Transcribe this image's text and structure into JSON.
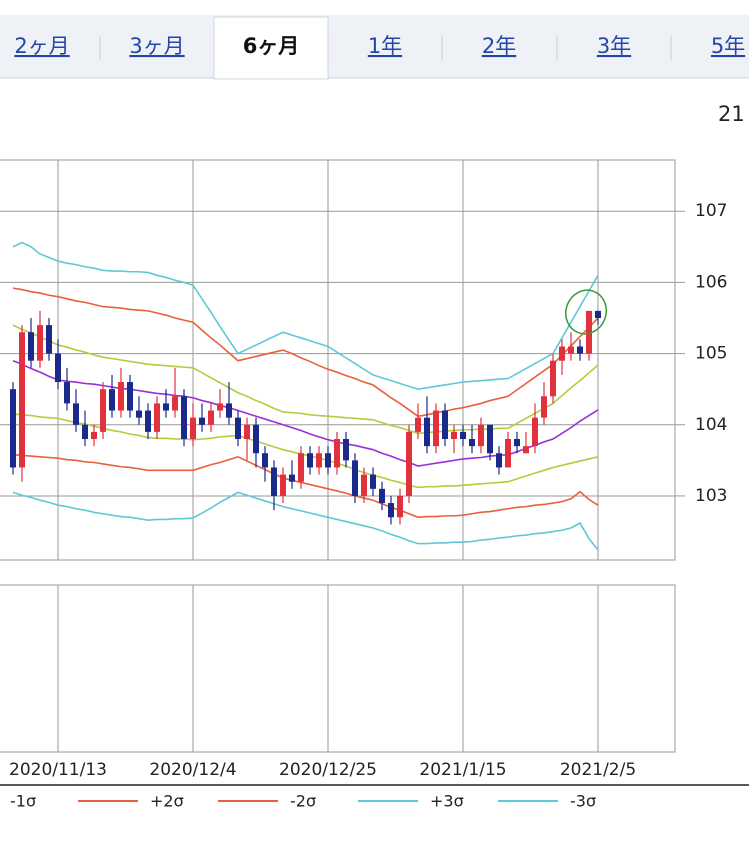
{
  "tabs": [
    "2ヶ月",
    "3ヶ月",
    "6ヶ月",
    "1年",
    "2年",
    "3年",
    "5年"
  ],
  "selected_tab": 2,
  "header_text": "21",
  "chart_data": {
    "type": "candlestick",
    "categories": [
      null,
      null,
      null,
      null,
      null,
      "2020/11/13",
      null,
      null,
      null,
      null,
      null,
      null,
      null,
      null,
      null,
      null,
      null,
      null,
      null,
      null,
      "2020/12/4",
      null,
      null,
      null,
      null,
      null,
      null,
      null,
      null,
      null,
      null,
      null,
      null,
      null,
      null,
      "2020/12/25",
      null,
      null,
      null,
      null,
      null,
      null,
      null,
      null,
      null,
      null,
      null,
      null,
      null,
      null,
      "2021/1/15",
      null,
      null,
      null,
      null,
      null,
      null,
      null,
      null,
      null,
      null,
      null,
      null,
      null,
      null,
      "2021/2/5"
    ],
    "open": [
      104.5,
      103.4,
      105.3,
      104.9,
      105.4,
      105.0,
      104.6,
      104.3,
      104.0,
      103.8,
      103.9,
      104.5,
      104.2,
      104.6,
      104.2,
      104.2,
      103.9,
      104.3,
      104.2,
      104.4,
      103.8,
      104.1,
      104.0,
      104.2,
      104.3,
      104.1,
      103.8,
      104.0,
      103.6,
      103.4,
      103.0,
      103.3,
      103.2,
      103.6,
      103.4,
      103.6,
      103.4,
      103.8,
      103.5,
      103.0,
      103.3,
      103.1,
      102.9,
      102.7,
      103.0,
      103.9,
      104.1,
      103.7,
      104.2,
      103.8,
      103.9,
      103.8,
      103.7,
      104.0,
      103.6,
      103.4,
      103.8,
      103.6,
      103.7,
      104.1,
      104.4,
      104.9,
      105.0,
      105.1,
      105.0,
      105.6
    ],
    "high": [
      104.6,
      105.4,
      105.5,
      105.6,
      105.5,
      105.2,
      104.8,
      104.5,
      104.2,
      104.0,
      104.6,
      104.7,
      104.8,
      104.7,
      104.4,
      104.3,
      104.4,
      104.5,
      104.8,
      104.5,
      104.3,
      104.3,
      104.3,
      104.5,
      104.6,
      104.2,
      104.1,
      104.1,
      103.7,
      103.5,
      103.4,
      103.5,
      103.7,
      103.7,
      103.7,
      103.7,
      103.9,
      103.9,
      103.6,
      103.4,
      103.4,
      103.2,
      103.0,
      103.1,
      104.0,
      104.3,
      104.4,
      104.3,
      104.3,
      104.0,
      104.0,
      104.0,
      104.1,
      104.0,
      103.7,
      103.9,
      103.9,
      103.9,
      104.3,
      104.6,
      105.0,
      105.2,
      105.3,
      105.2,
      105.6,
      105.6
    ],
    "low": [
      103.3,
      103.2,
      104.8,
      104.8,
      104.9,
      104.5,
      104.2,
      103.9,
      103.7,
      103.7,
      103.8,
      104.1,
      104.1,
      104.1,
      104.0,
      103.8,
      103.8,
      104.1,
      104.1,
      103.7,
      103.7,
      103.9,
      103.9,
      104.1,
      104.0,
      103.7,
      103.5,
      103.4,
      103.2,
      102.8,
      102.9,
      103.1,
      103.1,
      103.3,
      103.3,
      103.3,
      103.3,
      103.4,
      102.9,
      102.9,
      103.0,
      102.8,
      102.6,
      102.6,
      102.9,
      103.8,
      103.6,
      103.6,
      103.7,
      103.6,
      103.7,
      103.6,
      103.6,
      103.5,
      103.3,
      103.4,
      103.6,
      103.6,
      103.6,
      104.0,
      104.3,
      104.7,
      104.9,
      104.9,
      104.9,
      105.4
    ],
    "close": [
      103.4,
      105.3,
      104.9,
      105.4,
      105.0,
      104.6,
      104.3,
      104.0,
      103.8,
      103.9,
      104.5,
      104.2,
      104.6,
      104.2,
      104.1,
      103.9,
      104.3,
      104.2,
      104.4,
      103.8,
      104.1,
      104.0,
      104.2,
      104.3,
      104.1,
      103.8,
      104.0,
      103.6,
      103.4,
      103.0,
      103.3,
      103.2,
      103.6,
      103.4,
      103.6,
      103.4,
      103.8,
      103.5,
      103.0,
      103.3,
      103.1,
      102.9,
      102.7,
      103.0,
      103.9,
      104.1,
      103.7,
      104.2,
      103.8,
      103.9,
      103.8,
      103.7,
      104.0,
      103.6,
      103.4,
      103.8,
      103.7,
      103.7,
      104.1,
      104.4,
      104.9,
      105.1,
      105.1,
      105.0,
      105.6,
      105.5
    ],
    "up_color": "#e0323c",
    "down_color": "#1a2a8a",
    "series": [
      {
        "color": "#9a2fd8",
        "values": [
          104.9,
          104.85,
          104.79,
          104.74,
          104.68,
          104.63,
          104.61,
          104.6,
          104.58,
          104.57,
          104.55,
          104.53,
          104.51,
          104.5,
          104.48,
          104.46,
          104.44,
          104.43,
          104.41,
          104.4,
          104.38,
          104.34,
          104.31,
          104.27,
          104.24,
          104.2,
          104.16,
          104.12,
          104.08,
          104.04,
          104.0,
          103.96,
          103.92,
          103.87,
          103.83,
          103.79,
          103.76,
          103.73,
          103.71,
          103.68,
          103.65,
          103.6,
          103.56,
          103.51,
          103.47,
          103.42,
          103.44,
          103.46,
          103.48,
          103.5,
          103.52,
          103.53,
          103.54,
          103.56,
          103.57,
          103.58,
          103.62,
          103.67,
          103.71,
          103.76,
          103.8,
          103.88,
          103.96,
          104.05,
          104.13,
          104.21
        ]
      },
      {
        "color": "#b4cc3c",
        "values": [
          105.4,
          105.34,
          105.29,
          105.23,
          105.18,
          105.12,
          105.09,
          105.05,
          105.02,
          104.98,
          104.95,
          104.93,
          104.91,
          104.89,
          104.87,
          104.85,
          104.84,
          104.83,
          104.82,
          104.81,
          104.8,
          104.73,
          104.66,
          104.59,
          104.52,
          104.45,
          104.4,
          104.34,
          104.29,
          104.23,
          104.18,
          104.17,
          104.16,
          104.14,
          104.13,
          104.12,
          104.11,
          104.1,
          104.09,
          104.08,
          104.07,
          104.03,
          103.99,
          103.96,
          103.92,
          103.88,
          103.89,
          103.9,
          103.91,
          103.92,
          103.93,
          103.93,
          103.94,
          103.94,
          103.95,
          103.95,
          104.02,
          104.09,
          104.16,
          104.23,
          104.3,
          104.41,
          104.52,
          104.62,
          104.73,
          104.84
        ]
      },
      {
        "name": "-1σ",
        "color": "#b4cc3c",
        "values": [
          104.15,
          104.14,
          104.13,
          104.11,
          104.1,
          104.09,
          104.06,
          104.03,
          104.01,
          103.98,
          103.95,
          103.92,
          103.9,
          103.87,
          103.85,
          103.82,
          103.81,
          103.81,
          103.8,
          103.8,
          103.79,
          103.8,
          103.81,
          103.83,
          103.84,
          103.85,
          103.81,
          103.77,
          103.73,
          103.69,
          103.65,
          103.62,
          103.59,
          103.56,
          103.53,
          103.5,
          103.46,
          103.42,
          103.37,
          103.33,
          103.29,
          103.26,
          103.22,
          103.19,
          103.15,
          103.12,
          103.13,
          103.13,
          103.14,
          103.14,
          103.15,
          103.16,
          103.17,
          103.18,
          103.19,
          103.2,
          103.24,
          103.28,
          103.32,
          103.36,
          103.4,
          103.43,
          103.46,
          103.49,
          103.52,
          103.55
        ]
      },
      {
        "name": "+2σ",
        "color": "#e8603c",
        "values": [
          105.92,
          105.9,
          105.87,
          105.85,
          105.82,
          105.8,
          105.77,
          105.74,
          105.72,
          105.69,
          105.66,
          105.65,
          105.64,
          105.62,
          105.61,
          105.6,
          105.57,
          105.54,
          105.5,
          105.47,
          105.44,
          105.33,
          105.22,
          105.12,
          105.01,
          104.9,
          104.93,
          104.96,
          104.99,
          105.02,
          105.05,
          105.0,
          104.94,
          104.89,
          104.83,
          104.78,
          104.74,
          104.69,
          104.65,
          104.6,
          104.56,
          104.47,
          104.38,
          104.3,
          104.21,
          104.12,
          104.14,
          104.17,
          104.19,
          104.22,
          104.24,
          104.27,
          104.3,
          104.34,
          104.37,
          104.4,
          104.49,
          104.58,
          104.67,
          104.76,
          104.85,
          104.98,
          105.11,
          105.24,
          105.37,
          105.5
        ]
      },
      {
        "name": "-2σ",
        "color": "#e8603c",
        "values": [
          103.58,
          103.57,
          103.56,
          103.55,
          103.54,
          103.53,
          103.51,
          103.5,
          103.48,
          103.47,
          103.45,
          103.43,
          103.41,
          103.4,
          103.38,
          103.36,
          103.36,
          103.36,
          103.36,
          103.36,
          103.36,
          103.4,
          103.44,
          103.47,
          103.51,
          103.55,
          103.49,
          103.43,
          103.37,
          103.31,
          103.25,
          103.22,
          103.19,
          103.16,
          103.13,
          103.1,
          103.07,
          103.04,
          103.0,
          102.97,
          102.94,
          102.89,
          102.84,
          102.8,
          102.75,
          102.7,
          102.71,
          102.71,
          102.72,
          102.72,
          102.73,
          102.75,
          102.77,
          102.78,
          102.8,
          102.82,
          102.84,
          102.85,
          102.87,
          102.88,
          102.9,
          102.92,
          102.96,
          103.06,
          102.95,
          102.87
        ]
      },
      {
        "name": "+3σ",
        "color": "#5ec8d8",
        "values": [
          106.5,
          106.56,
          106.5,
          106.4,
          106.35,
          106.3,
          106.27,
          106.25,
          106.22,
          106.2,
          106.17,
          106.16,
          106.16,
          106.15,
          106.15,
          106.14,
          106.1,
          106.07,
          106.03,
          106.0,
          105.96,
          105.77,
          105.58,
          105.38,
          105.19,
          105.0,
          105.06,
          105.12,
          105.18,
          105.24,
          105.3,
          105.26,
          105.22,
          105.18,
          105.14,
          105.1,
          105.02,
          104.94,
          104.86,
          104.78,
          104.7,
          104.66,
          104.62,
          104.58,
          104.54,
          104.5,
          104.52,
          104.54,
          104.56,
          104.58,
          104.6,
          104.61,
          104.62,
          104.63,
          104.64,
          104.65,
          104.72,
          104.79,
          104.86,
          104.93,
          105.0,
          105.22,
          105.44,
          105.66,
          105.88,
          106.1
        ]
      },
      {
        "name": "-3σ",
        "color": "#5ec8d8",
        "values": [
          103.05,
          103.01,
          102.98,
          102.94,
          102.91,
          102.87,
          102.85,
          102.82,
          102.8,
          102.77,
          102.75,
          102.73,
          102.71,
          102.7,
          102.68,
          102.66,
          102.67,
          102.67,
          102.68,
          102.68,
          102.69,
          102.76,
          102.83,
          102.91,
          102.98,
          103.05,
          103.01,
          102.97,
          102.93,
          102.89,
          102.85,
          102.82,
          102.79,
          102.76,
          102.73,
          102.7,
          102.67,
          102.64,
          102.61,
          102.58,
          102.55,
          102.51,
          102.46,
          102.42,
          102.37,
          102.33,
          102.33,
          102.34,
          102.34,
          102.35,
          102.35,
          102.36,
          102.38,
          102.39,
          102.41,
          102.42,
          102.44,
          102.45,
          102.47,
          102.48,
          102.5,
          102.52,
          102.55,
          102.62,
          102.4,
          102.24
        ]
      }
    ],
    "ylim": [
      102.1,
      107.72
    ],
    "yticks": [
      103,
      104,
      105,
      106,
      107
    ],
    "grid": true
  }
}
